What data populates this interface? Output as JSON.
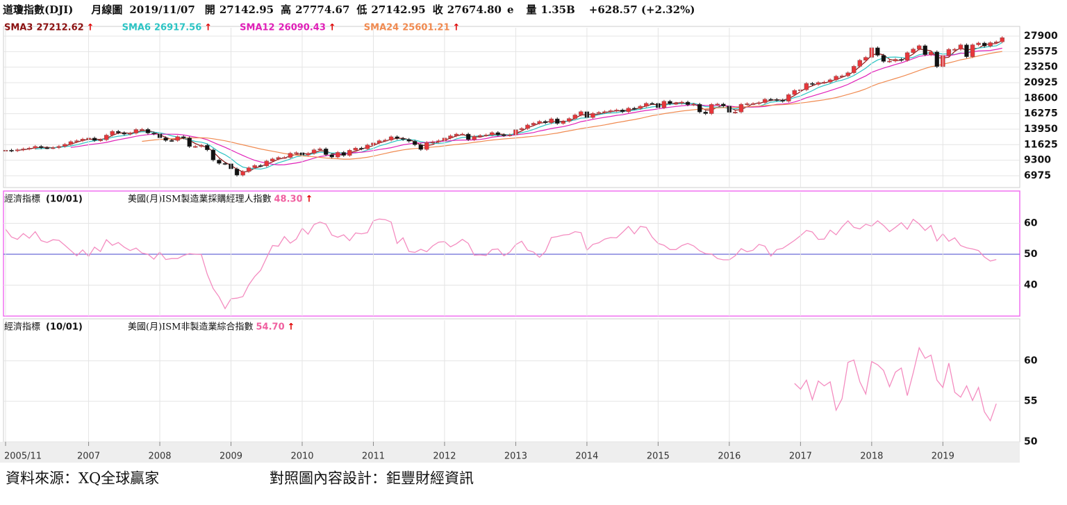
{
  "header": {
    "name": "道瓊指數(DJI)",
    "period": "月線圖",
    "date": "2019/11/07",
    "open_label": "開",
    "open": "27142.95",
    "high_label": "高",
    "high": "27774.67",
    "low_label": "低",
    "low": "27142.95",
    "close_label": "收",
    "close": "27674.80",
    "estimate": "e",
    "volume_label": "量",
    "volume": "1.35B",
    "change": "+628.57 (+2.32%)"
  },
  "chart_data": [
    {
      "type": "candlestick",
      "start": "2005/11",
      "up_color": "#e8363a",
      "down_color": "#111111",
      "series": [
        {
          "name": "DJI",
          "values": [
            10806,
            10718,
            10865,
            10993,
            11109,
            11367,
            11168,
            11150,
            11186,
            11381,
            11679,
            12081,
            12221,
            12463,
            12622,
            12269,
            12354,
            13063,
            13628,
            13409,
            13212,
            13358,
            13896,
            13930,
            13372,
            13265,
            12650,
            12266,
            12263,
            12820,
            12638,
            11350,
            11378,
            11544,
            10851,
            9325,
            8829,
            8776,
            8001,
            7063,
            7609,
            8168,
            8500,
            8447,
            9172,
            9496,
            9712,
            9713,
            10345,
            10428,
            10067,
            10325,
            10857,
            11009,
            10137,
            9774,
            10466,
            10015,
            10788,
            11118,
            11006,
            11578,
            11892,
            12226,
            12320,
            12811,
            12570,
            12414,
            12143,
            11614,
            10913,
            11955,
            12046,
            12218,
            12633,
            12952,
            13212,
            13214,
            12393,
            12880,
            13009,
            13091,
            13437,
            13096,
            13026,
            13104,
            13861,
            14054,
            14579,
            14840,
            15116,
            14910,
            15500,
            14810,
            15130,
            15546,
            16086,
            16577,
            15699,
            16322,
            16458,
            16581,
            16717,
            16827,
            16563,
            17098,
            17043,
            17391,
            17828,
            17823,
            17165,
            18133,
            17776,
            17841,
            18011,
            17620,
            17690,
            16528,
            16285,
            17664,
            17720,
            17425,
            16466,
            16517,
            17685,
            17774,
            17787,
            17930,
            18432,
            18401,
            18308,
            18142,
            19124,
            19763,
            19864,
            20812,
            20663,
            20941,
            21009,
            21350,
            21891,
            21948,
            22405,
            23377,
            24272,
            24719,
            26149,
            25029,
            24103,
            24163,
            24416,
            24271,
            25415,
            25965,
            26458,
            25116,
            25538,
            23327,
            24999,
            25916,
            25929,
            26593,
            24815,
            26600,
            26864,
            26403,
            26917,
            27046,
            27675
          ]
        }
      ],
      "sma": [
        {
          "name": "SMA3",
          "period": 3,
          "value": 27212.62,
          "arrow": "↑",
          "color": "#8b1010"
        },
        {
          "name": "SMA6",
          "period": 6,
          "value": 26917.56,
          "arrow": "↑",
          "color": "#2cc4c4"
        },
        {
          "name": "SMA12",
          "period": 12,
          "value": 26090.43,
          "arrow": "↑",
          "color": "#e020b8"
        },
        {
          "name": "SMA24",
          "period": 24,
          "value": 25601.21,
          "arrow": "↑",
          "color": "#f08a50"
        }
      ],
      "ylim": [
        5200,
        29150
      ],
      "yticks": [
        6975,
        9300,
        11625,
        13950,
        16275,
        18600,
        20925,
        23250,
        25575,
        27900
      ],
      "grid": true
    },
    {
      "type": "line",
      "start": "2005/11",
      "label": "經濟指標",
      "date": "(10/01)",
      "hline": 50,
      "border": "#f070f0",
      "series": [
        {
          "name": "美國(月)ISM製造業採購經理人指數",
          "last": "48.30",
          "arrow": "↑",
          "color": "#f48cc0",
          "values": [
            58.1,
            55.6,
            54.8,
            56.7,
            55.2,
            57.3,
            54.4,
            53.8,
            54.7,
            54.5,
            52.9,
            51.2,
            49.5,
            51.4,
            49.3,
            52.3,
            50.9,
            54.7,
            52.9,
            53.8,
            52.3,
            51.2,
            52.0,
            50.4,
            50.0,
            48.4,
            50.7,
            48.3,
            48.6,
            48.6,
            49.6,
            50.2,
            50.0,
            49.9,
            43.5,
            38.9,
            36.2,
            32.4,
            35.6,
            35.8,
            36.3,
            40.1,
            42.8,
            44.8,
            48.9,
            52.8,
            52.6,
            55.7,
            53.6,
            54.9,
            58.4,
            56.5,
            59.6,
            60.4,
            59.7,
            56.2,
            55.5,
            56.3,
            54.4,
            56.9,
            56.6,
            57.0,
            60.8,
            61.4,
            61.2,
            60.4,
            53.5,
            55.3,
            50.9,
            50.6,
            51.6,
            50.8,
            52.7,
            53.9,
            54.1,
            52.4,
            53.4,
            54.8,
            53.5,
            49.7,
            49.8,
            49.6,
            51.5,
            51.7,
            49.5,
            50.7,
            53.1,
            54.2,
            51.3,
            50.7,
            49.0,
            50.9,
            55.4,
            55.7,
            56.2,
            56.4,
            57.3,
            57.0,
            51.3,
            53.2,
            53.7,
            54.9,
            55.4,
            55.3,
            57.1,
            59.0,
            56.6,
            59.0,
            58.7,
            55.5,
            53.5,
            52.9,
            51.5,
            51.5,
            52.8,
            53.5,
            52.7,
            51.1,
            50.2,
            50.1,
            48.6,
            48.2,
            48.2,
            49.5,
            51.8,
            50.8,
            51.3,
            53.2,
            52.6,
            49.4,
            51.5,
            51.9,
            53.2,
            54.5,
            56.0,
            57.7,
            57.2,
            54.8,
            54.9,
            57.8,
            56.3,
            58.8,
            60.8,
            58.7,
            58.2,
            59.7,
            59.1,
            60.8,
            59.3,
            57.3,
            58.7,
            60.2,
            58.1,
            61.3,
            59.8,
            57.7,
            59.3,
            54.3,
            56.6,
            54.2,
            55.3,
            52.8,
            52.1,
            51.7,
            51.2,
            49.1,
            47.8,
            48.3
          ]
        }
      ],
      "ylim": [
        30,
        70
      ],
      "yticks": [
        40,
        50,
        60
      ],
      "grid": true
    },
    {
      "type": "line",
      "start": "2016/12",
      "label": "經濟指標",
      "date": "(10/01)",
      "border": "#cccccc",
      "series": [
        {
          "name": "美國(月)ISM非製造業綜合指數",
          "last": "54.70",
          "arrow": "↑",
          "color": "#f48cc0",
          "values": [
            57.2,
            56.5,
            57.6,
            55.2,
            57.5,
            56.9,
            57.4,
            53.9,
            55.3,
            59.8,
            60.1,
            57.4,
            55.9,
            59.9,
            59.5,
            58.8,
            56.8,
            58.6,
            59.1,
            55.7,
            58.5,
            61.6,
            60.3,
            60.7,
            57.6,
            56.7,
            59.7,
            56.1,
            55.5,
            56.9,
            55.1,
            56.7,
            53.7,
            52.6,
            54.7
          ]
        }
      ],
      "ylim": [
        50,
        65
      ],
      "yticks": [
        50,
        55,
        60
      ],
      "grid": true,
      "xticks": [
        "2005/11",
        "2007",
        "2008",
        "2009",
        "2010",
        "2011",
        "2012",
        "2013",
        "2014",
        "2015",
        "2016",
        "2017",
        "2018",
        "2019"
      ]
    }
  ],
  "footer": {
    "source": "資料來源：XQ全球贏家",
    "design": "對照圖內容設計：鉅豐財經資訊"
  }
}
